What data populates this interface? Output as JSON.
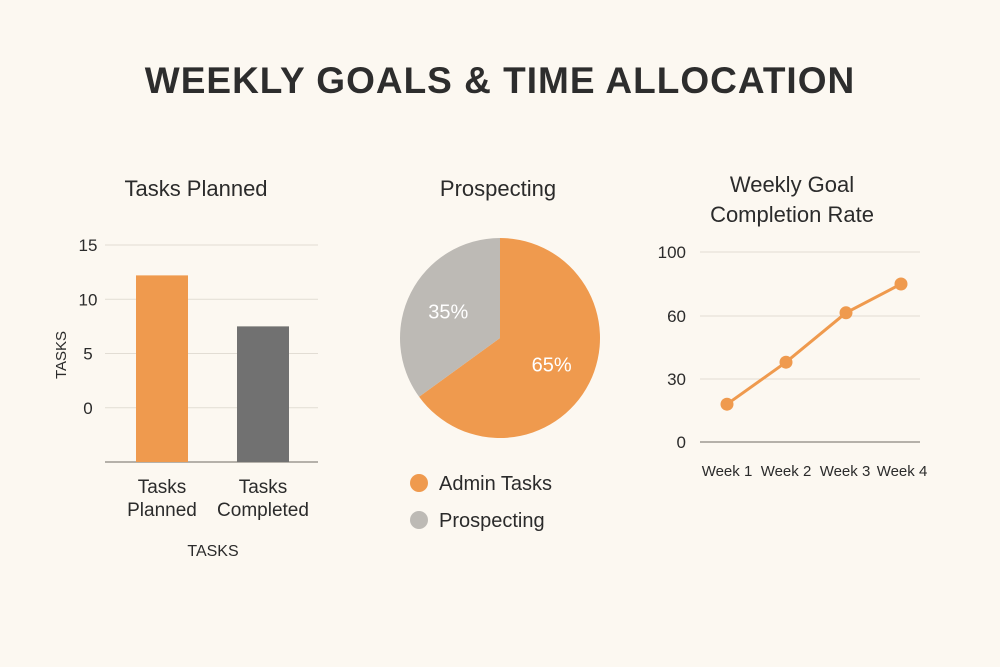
{
  "page": {
    "title": "WEEKLY GOALS & TIME ALLOCATION"
  },
  "chart_data": [
    {
      "type": "bar",
      "title": "Tasks Planned",
      "categories": [
        "Tasks Planned",
        "Tasks Completed"
      ],
      "category_lines": [
        [
          "Tasks",
          "Planned"
        ],
        [
          "Tasks",
          "Completed"
        ]
      ],
      "values": [
        12.2,
        7.5
      ],
      "xlabel": "TASKS",
      "ylabel": "TASKS",
      "ylim": [
        -5,
        15
      ],
      "yticks": [
        0,
        5,
        10,
        15
      ],
      "grid": true,
      "colors": [
        "#ef9a4e",
        "#717171"
      ]
    },
    {
      "type": "pie",
      "title": "Prospecting",
      "slices": [
        {
          "label": "Admin Tasks",
          "value": 65,
          "text": "65%",
          "color": "#ef9a4e"
        },
        {
          "label": "Prospecting",
          "value": 35,
          "text": "35%",
          "color": "#bdbab5"
        }
      ],
      "legend": "bottom"
    },
    {
      "type": "line",
      "title_lines": [
        "Weekly Goal",
        "Completion Rate"
      ],
      "categories": [
        "Week 1",
        "Week 2",
        "Week 3",
        "Week 4"
      ],
      "values": [
        18,
        38,
        62,
        80
      ],
      "yticks": [
        0,
        30,
        60,
        100
      ],
      "ylim": [
        0,
        100
      ],
      "grid": true,
      "color": "#ef9a4e"
    }
  ]
}
